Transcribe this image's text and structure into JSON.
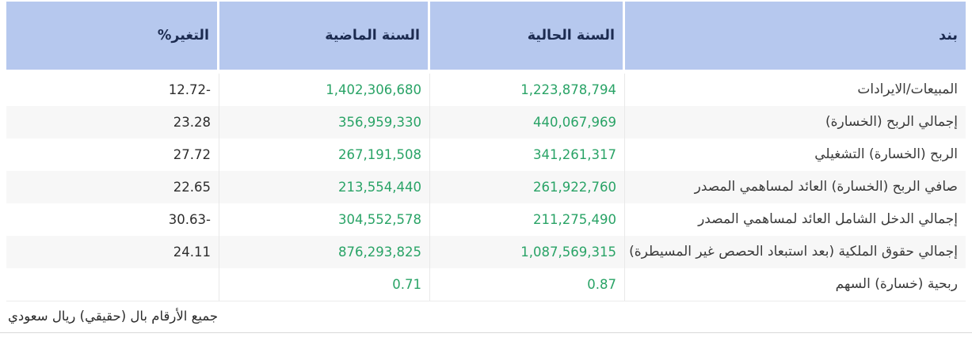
{
  "table": {
    "columns": [
      {
        "key": "item",
        "label": "بند"
      },
      {
        "key": "current",
        "label": "السنة الحالية"
      },
      {
        "key": "previous",
        "label": "السنة الماضية"
      },
      {
        "key": "change",
        "label": "التغير%"
      }
    ],
    "rows": [
      {
        "item": "المبيعات/الايرادات",
        "current": "1,223,878,794",
        "previous": "1,402,306,680",
        "change": "-12.72"
      },
      {
        "item": "إجمالي الربح (الخسارة)",
        "current": "440,067,969",
        "previous": "356,959,330",
        "change": "23.28"
      },
      {
        "item": "الربح (الخسارة) التشغيلي",
        "current": "341,261,317",
        "previous": "267,191,508",
        "change": "27.72"
      },
      {
        "item": "صافي الربح (الخسارة) العائد لمساهمي المصدر",
        "current": "261,922,760",
        "previous": "213,554,440",
        "change": "22.65"
      },
      {
        "item": "إجمالي الدخل الشامل العائد لمساهمي المصدر",
        "current": "211,275,490",
        "previous": "304,552,578",
        "change": "-30.63"
      },
      {
        "item": "إجمالي حقوق الملكية (بعد استبعاد الحصص غير المسيطرة)",
        "current": "1,087,569,315",
        "previous": "876,293,825",
        "change": "24.11"
      },
      {
        "item": "ربحية (خسارة) السهم",
        "current": "0.87",
        "previous": "0.71",
        "change": ""
      }
    ],
    "footnote": "جميع الأرقام بال (حقيقي) ريال سعودي"
  },
  "colors": {
    "header-bg": "#b6c8ee",
    "header-text": "#1c2b50",
    "value-green": "#29a366",
    "value-dark": "#2d2d2d",
    "label-text": "#3a3a3a",
    "row-alt": "#f7f7f7",
    "divider": "#e9e9e9",
    "bottom-border": "#d8d8d8"
  }
}
